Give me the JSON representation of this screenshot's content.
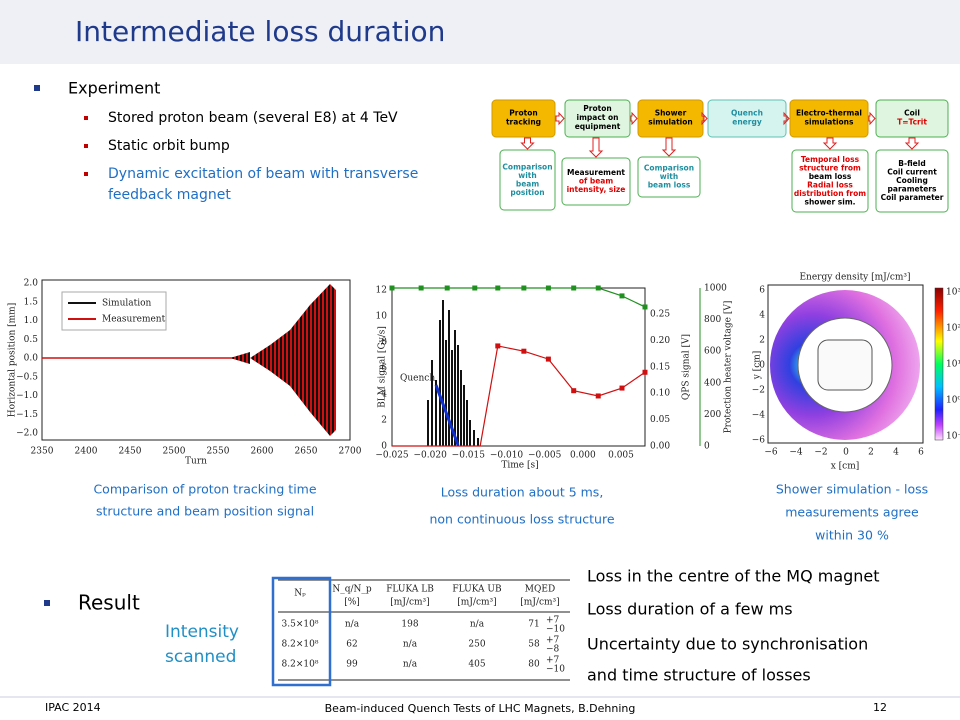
{
  "header": {
    "title": "Intermediate loss duration"
  },
  "experiment": {
    "heading": "Experiment",
    "items": [
      "Stored proton beam (several E8) at 4 TeV",
      "Static orbit bump",
      "Dynamic excitation of beam  with transverse",
      "feedback magnet"
    ]
  },
  "flow": {
    "top": [
      {
        "lines": [
          "Proton",
          "tracking"
        ]
      },
      {
        "lines": [
          "Proton",
          "impact on",
          "equipment"
        ]
      },
      {
        "lines": [
          "Shower",
          "simulation"
        ]
      },
      {
        "lines": [
          "Quench",
          "energy"
        ]
      },
      {
        "lines": [
          "Electro-thermal",
          "simulations"
        ]
      },
      {
        "lines": [
          "Coil",
          "T=Tcrit"
        ]
      }
    ],
    "bottom": [
      {
        "lines": [
          "Comparison",
          "with",
          "beam",
          "position"
        ]
      },
      {
        "lines": [
          "Measurement",
          "of beam",
          "intensity, size"
        ]
      },
      {
        "lines": [
          "Comparison",
          "with",
          "beam loss"
        ]
      },
      {
        "lines": [
          "Temporal loss",
          "structure from",
          "beam loss",
          "Radial loss",
          "distribution from",
          "shower sim."
        ]
      },
      {
        "lines": [
          "B-field",
          "Coil current",
          "Cooling",
          "parameters",
          "Coil parameter"
        ]
      }
    ]
  },
  "fig1": {
    "ylabel": "Horizontal position [mm]",
    "xlabel": "Turn",
    "xticks": [
      "2350",
      "2400",
      "2450",
      "2500",
      "2550",
      "2600",
      "2650",
      "2700"
    ],
    "yticks": [
      "2.0",
      "1.5",
      "1.0",
      "0.5",
      "0.0",
      "−0.5",
      "−1.0",
      "−1.5",
      "−2.0"
    ],
    "legend": [
      "Simulation",
      "Measurement"
    ]
  },
  "fig2": {
    "ylabel": "BLM signal [Gy/s]",
    "y2label": "QPS signal [V]",
    "y3label": "Protection heater voltage [V]",
    "xlabel": "Time [s]",
    "annotation": "Quench",
    "yticks": [
      "0",
      "2",
      "4",
      "6",
      "8",
      "10",
      "12"
    ],
    "y2ticks": [
      "0.00",
      "0.05",
      "0.10",
      "0.15",
      "0.20",
      "0.25"
    ],
    "y3ticks": [
      "0",
      "200",
      "400",
      "600",
      "800",
      "1000"
    ],
    "xticks": [
      "−0.025",
      "−0.020",
      "−0.015",
      "−0.010",
      "−0.005",
      "0.000",
      "0.005"
    ],
    "heater": {
      "x": [
        -0.025,
        -0.0212,
        -0.0178,
        -0.0142,
        -0.0112,
        -0.0078,
        -0.0046,
        -0.0013,
        0.0019,
        0.005,
        0.008
      ],
      "values": [
        1000,
        1000,
        1000,
        1000,
        1000,
        1000,
        1000,
        1000,
        1000,
        950,
        880
      ]
    },
    "qps": {
      "x": [
        -0.025,
        -0.0135,
        -0.0112,
        -0.0078,
        -0.0046,
        -0.0013,
        0.0019,
        0.005,
        0.008
      ],
      "values": [
        0,
        0,
        0.19,
        0.18,
        0.165,
        0.105,
        0.095,
        0.11,
        0.14
      ]
    }
  },
  "fig3": {
    "title": "Energy density [mJ/cm³]",
    "ylabel": "y [cm]",
    "xlabel": "x [cm]",
    "ticks": [
      "−6",
      "−4",
      "−2",
      "0",
      "2",
      "4",
      "6"
    ],
    "colorbar": [
      "10³",
      "10²",
      "10¹",
      "10⁰",
      "10⁻¹"
    ]
  },
  "captions": [
    [
      "Comparison of proton tracking time",
      "structure and beam position signal"
    ],
    [
      "Loss duration about 5 ms,",
      "non continuous loss structure"
    ],
    [
      "Shower simulation - loss",
      "measurements  agree",
      "within 30 %"
    ]
  ],
  "result": {
    "heading": "Result",
    "note": [
      "Intensity",
      "scanned"
    ]
  },
  "table": {
    "header": [
      [
        "Nₚ",
        ""
      ],
      [
        "N_q/N_p",
        "[%]"
      ],
      [
        "FLUKA LB",
        "[mJ/cm³]"
      ],
      [
        "FLUKA UB",
        "[mJ/cm³]"
      ],
      [
        "MQED",
        "[mJ/cm³]"
      ]
    ],
    "rows": [
      [
        "3.5×10⁸",
        "n/a",
        "198",
        "n/a",
        "71",
        "+7",
        "−10"
      ],
      [
        "8.2×10⁸",
        "62",
        "n/a",
        "250",
        "58",
        "+7",
        "−8"
      ],
      [
        "8.2×10⁸",
        "99",
        "n/a",
        "405",
        "80",
        "+7",
        "−10"
      ]
    ]
  },
  "findings": [
    "Loss in the centre of the MQ magnet",
    "Loss duration of a few ms",
    "Uncertainty due to synchronisation",
    "and time structure of losses"
  ],
  "footer": {
    "left": "IPAC 2014",
    "center": "Beam-induced Quench Tests of LHC Magnets, B.Dehning",
    "page": "12"
  }
}
